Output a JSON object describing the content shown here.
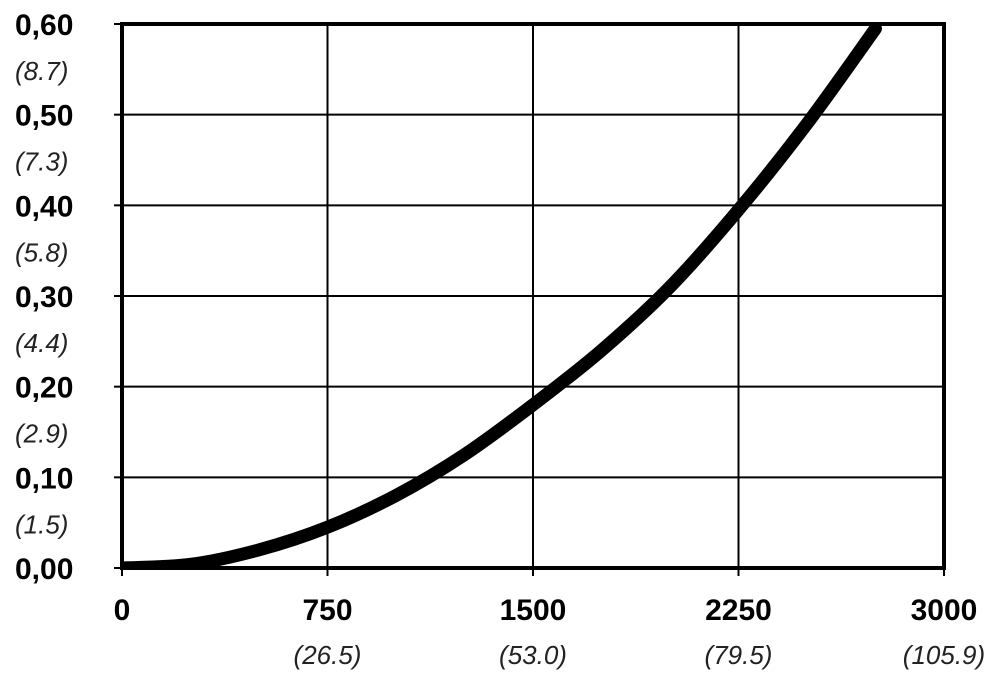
{
  "chart_data": {
    "type": "line",
    "title": "",
    "xlabel": "",
    "ylabel": "",
    "xlim": [
      0,
      3000
    ],
    "ylim": [
      0,
      0.6
    ],
    "grid": true,
    "x_ticks": [
      {
        "value": 0,
        "label": "0",
        "sublabel": ""
      },
      {
        "value": 750,
        "label": "750",
        "sublabel": "(26.5)"
      },
      {
        "value": 1500,
        "label": "1500",
        "sublabel": "(53.0)"
      },
      {
        "value": 2250,
        "label": "2250",
        "sublabel": "(79.5)"
      },
      {
        "value": 3000,
        "label": "3000",
        "sublabel": "(105.9)"
      }
    ],
    "y_ticks": [
      {
        "value": 0.0,
        "label": "0,00",
        "sublabel": ""
      },
      {
        "value": 0.1,
        "label": "0,10",
        "sublabel": "(1.5)"
      },
      {
        "value": 0.2,
        "label": "0,20",
        "sublabel": "(2.9)"
      },
      {
        "value": 0.3,
        "label": "0,30",
        "sublabel": "(4.4)"
      },
      {
        "value": 0.4,
        "label": "0,40",
        "sublabel": "(5.8)"
      },
      {
        "value": 0.5,
        "label": "0,50",
        "sublabel": "(7.3)"
      },
      {
        "value": 0.6,
        "label": "0,60",
        "sublabel": "(8.7)"
      }
    ],
    "series": [
      {
        "x": [
          0,
          250,
          500,
          750,
          1000,
          1250,
          1500,
          1750,
          2000,
          2250,
          2500,
          2750
        ],
        "y": [
          0.0,
          0.004,
          0.02,
          0.045,
          0.08,
          0.125,
          0.18,
          0.24,
          0.31,
          0.395,
          0.49,
          0.595
        ]
      }
    ]
  }
}
